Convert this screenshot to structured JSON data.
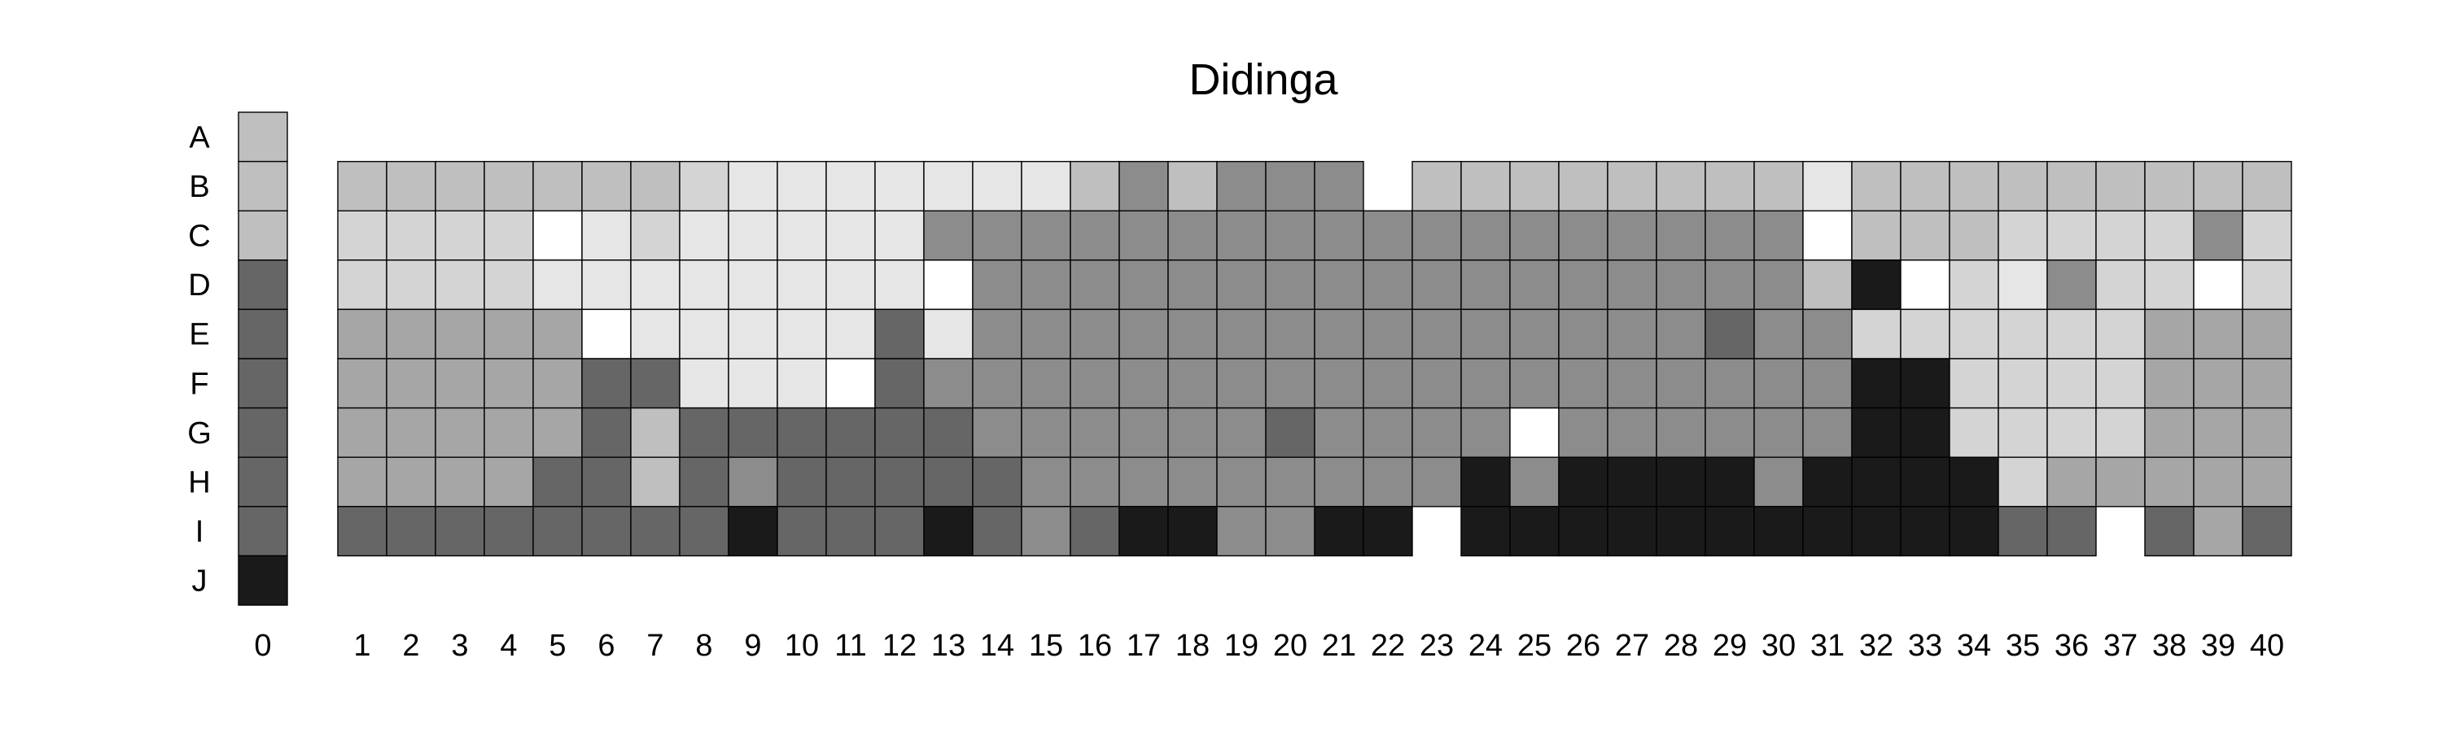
{
  "chart_data": {
    "type": "heatmap",
    "title": "Didinga",
    "row_labels": [
      "A",
      "B",
      "C",
      "D",
      "E",
      "F",
      "G",
      "H",
      "I",
      "J"
    ],
    "columns": [
      "0",
      "1",
      "2",
      "3",
      "4",
      "5",
      "6",
      "7",
      "8",
      "9",
      "10",
      "11",
      "12",
      "13",
      "14",
      "15",
      "16",
      "17",
      "18",
      "19",
      "20",
      "21",
      "22",
      "23",
      "24",
      "25",
      "26",
      "27",
      "28",
      "29",
      "30",
      "31",
      "32",
      "33",
      "34",
      "35",
      "36",
      "37",
      "38",
      "39",
      "40"
    ],
    "value_scale": "gray intensity 0-255 (255 = white, 0 = black); null = empty cell",
    "legend_column": {
      "column": "0",
      "rows": [
        "A",
        "B",
        "C",
        "D",
        "E",
        "F",
        "G",
        "H",
        "I",
        "J"
      ],
      "values": [
        191,
        191,
        191,
        102,
        102,
        102,
        102,
        102,
        102,
        26
      ]
    },
    "grid_rows": [
      "B",
      "C",
      "D",
      "E",
      "F",
      "G",
      "H",
      "I"
    ],
    "grid_columns": [
      "1",
      "2",
      "3",
      "4",
      "5",
      "6",
      "7",
      "8",
      "9",
      "10",
      "11",
      "12",
      "13",
      "14",
      "15",
      "16",
      "17",
      "18",
      "19",
      "20",
      "21",
      "22",
      "23",
      "24",
      "25",
      "26",
      "27",
      "28",
      "29",
      "30",
      "31",
      "32",
      "33",
      "34",
      "35",
      "36",
      "37",
      "38",
      "39",
      "40"
    ],
    "values": [
      [
        191,
        191,
        191,
        191,
        191,
        191,
        191,
        212,
        230,
        230,
        230,
        230,
        230,
        230,
        230,
        191,
        140,
        191,
        140,
        140,
        140,
        null,
        191,
        191,
        191,
        191,
        191,
        191,
        191,
        191,
        230,
        191,
        191,
        191,
        191,
        191,
        191,
        191,
        191,
        191
      ],
      [
        212,
        212,
        212,
        212,
        255,
        230,
        212,
        230,
        230,
        230,
        230,
        230,
        140,
        140,
        140,
        140,
        140,
        140,
        140,
        140,
        140,
        140,
        140,
        140,
        140,
        140,
        140,
        140,
        140,
        140,
        255,
        191,
        191,
        191,
        212,
        212,
        212,
        212,
        140,
        212
      ],
      [
        212,
        212,
        212,
        212,
        230,
        230,
        230,
        230,
        230,
        230,
        230,
        230,
        255,
        140,
        140,
        140,
        140,
        140,
        140,
        140,
        140,
        140,
        140,
        140,
        140,
        140,
        140,
        140,
        140,
        140,
        191,
        26,
        255,
        212,
        230,
        140,
        212,
        212,
        255,
        212
      ],
      [
        166,
        166,
        166,
        166,
        166,
        255,
        230,
        230,
        230,
        230,
        230,
        102,
        230,
        140,
        140,
        140,
        140,
        140,
        140,
        140,
        140,
        140,
        140,
        140,
        140,
        140,
        140,
        140,
        102,
        140,
        140,
        212,
        212,
        212,
        212,
        212,
        212,
        166,
        166,
        166
      ],
      [
        166,
        166,
        166,
        166,
        166,
        102,
        102,
        230,
        230,
        230,
        255,
        102,
        140,
        140,
        140,
        140,
        140,
        140,
        140,
        140,
        140,
        140,
        140,
        140,
        140,
        140,
        140,
        140,
        140,
        140,
        140,
        26,
        26,
        212,
        212,
        212,
        212,
        166,
        166,
        166
      ],
      [
        166,
        166,
        166,
        166,
        166,
        102,
        191,
        102,
        102,
        102,
        102,
        102,
        102,
        140,
        140,
        140,
        140,
        140,
        140,
        102,
        140,
        140,
        140,
        140,
        255,
        140,
        140,
        140,
        140,
        140,
        140,
        26,
        26,
        212,
        212,
        212,
        212,
        166,
        166,
        166
      ],
      [
        166,
        166,
        166,
        166,
        102,
        102,
        191,
        102,
        140,
        102,
        102,
        102,
        102,
        102,
        140,
        140,
        140,
        140,
        140,
        140,
        140,
        140,
        140,
        26,
        140,
        26,
        26,
        26,
        26,
        140,
        26,
        26,
        26,
        26,
        212,
        166,
        166,
        166,
        166,
        166
      ],
      [
        102,
        102,
        102,
        102,
        102,
        102,
        102,
        102,
        26,
        102,
        102,
        102,
        26,
        102,
        140,
        102,
        26,
        26,
        140,
        140,
        26,
        26,
        null,
        26,
        26,
        26,
        26,
        26,
        26,
        26,
        26,
        26,
        26,
        26,
        102,
        102,
        null,
        102,
        166,
        102
      ]
    ]
  }
}
